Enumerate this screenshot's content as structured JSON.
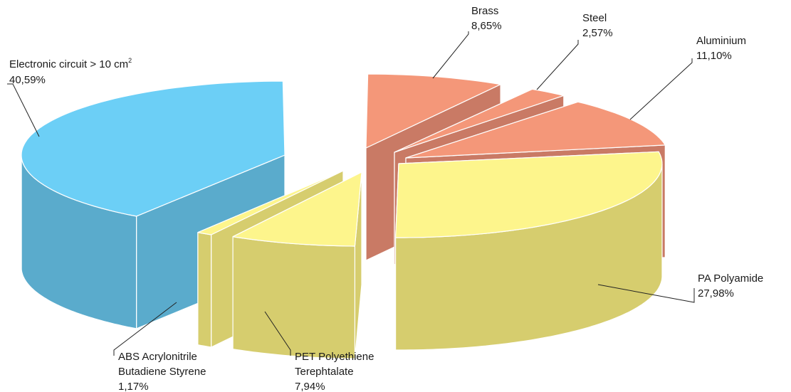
{
  "chart_data": {
    "type": "pie",
    "variant": "3d-exploded",
    "title": "",
    "slices": [
      {
        "label": "Electronic circuit > 10 cm",
        "label_sup": "2",
        "value": 40.59,
        "value_text": "40,59%",
        "color": "#6ccff6",
        "side_color": "#5aabcc"
      },
      {
        "label": "ABS Acrylonitrile Butadiene Styrene",
        "label_lines": [
          "ABS Acrylonitrile",
          "Butadiene Styrene"
        ],
        "value": 1.17,
        "value_text": "1,17%",
        "color": "#fdf58c",
        "side_color": "#d6cd6e"
      },
      {
        "label": "PET Polyethiene Terephtalate",
        "label_lines": [
          "PET Polyethiene",
          "Terephtalate"
        ],
        "value": 7.94,
        "value_text": "7,94%",
        "color": "#fdf58c",
        "side_color": "#d6cd6e"
      },
      {
        "label": "PA Polyamide",
        "value": 27.98,
        "value_text": "27,98%",
        "color": "#fdf58c",
        "side_color": "#d6cd6e"
      },
      {
        "label": "Aluminium",
        "value": 11.1,
        "value_text": "11,10%",
        "color": "#f49779",
        "side_color": "#c97a65"
      },
      {
        "label": "Steel",
        "value": 2.57,
        "value_text": "2,57%",
        "color": "#f49779",
        "side_color": "#c97a65"
      },
      {
        "label": "Brass",
        "value": 8.65,
        "value_text": "8,65%",
        "color": "#f49779",
        "side_color": "#c97a65"
      }
    ]
  }
}
